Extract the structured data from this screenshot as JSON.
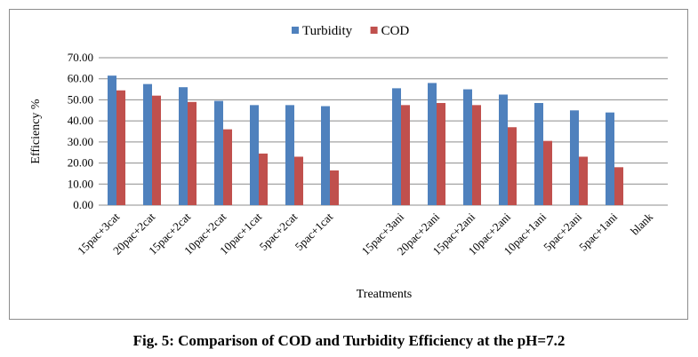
{
  "caption": "Fig. 5: Comparison of COD and Turbidity Efficiency at the pH=7.2",
  "chart_data": {
    "type": "bar",
    "xlabel": "Treatments",
    "ylabel": "Efficiency %",
    "ylim": [
      0,
      70
    ],
    "yticks": [
      "0.00",
      "10.00",
      "20.00",
      "30.00",
      "40.00",
      "50.00",
      "60.00",
      "70.00"
    ],
    "grid": true,
    "legend_position": "top-center",
    "categories": [
      "15pac+3cat",
      "20pac+2cat",
      "15pac+2cat",
      "10pac+2cat",
      "10pac+1cat",
      "5pac+2cat",
      "5pac+1cat",
      "",
      "15pac+3ani",
      "20pac+2ani",
      "15pac+2ani",
      "10pac+2ani",
      "10pac+1ani",
      "5pac+2ani",
      "5pac+1ani",
      "blank"
    ],
    "series": [
      {
        "name": "Turbidity",
        "color": "#4f81bd",
        "values": [
          61.5,
          57.5,
          56.0,
          49.5,
          47.5,
          47.5,
          47.0,
          null,
          55.5,
          58.0,
          55.0,
          52.5,
          48.5,
          45.0,
          44.0,
          null
        ]
      },
      {
        "name": "COD",
        "color": "#c0504d",
        "values": [
          54.5,
          52.0,
          49.0,
          36.0,
          24.5,
          23.0,
          16.5,
          null,
          47.5,
          48.5,
          47.5,
          37.0,
          30.5,
          23.0,
          18.0,
          null
        ]
      }
    ]
  }
}
